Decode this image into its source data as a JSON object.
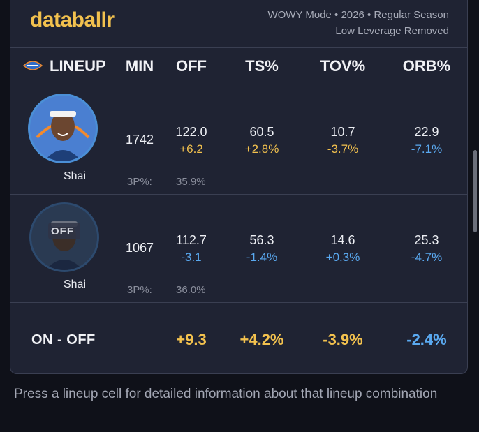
{
  "header": {
    "logo": "databallr",
    "meta_line1": "WOWY Mode • 2026 • Regular Season",
    "meta_line2": "Low Leverage Removed"
  },
  "columns": {
    "lineup": "LINEUP",
    "min": "MIN",
    "off": "OFF",
    "ts": "TS%",
    "tov": "TOV%",
    "orb": "ORB%"
  },
  "rows": [
    {
      "player": "Shai",
      "status": "on",
      "min": "1742",
      "off": "122.0",
      "off_delta": "+6.2",
      "ts": "60.5",
      "ts_delta": "+2.8%",
      "tov": "10.7",
      "tov_delta": "-3.7%",
      "orb": "22.9",
      "orb_delta": "-7.1%",
      "threep_label": "3P%:",
      "threep": "35.9%"
    },
    {
      "player": "Shai",
      "status": "off",
      "off_tag": "OFF",
      "min": "1067",
      "off": "112.7",
      "off_delta": "-3.1",
      "ts": "56.3",
      "ts_delta": "-1.4%",
      "tov": "14.6",
      "tov_delta": "+0.3%",
      "orb": "25.3",
      "orb_delta": "-4.7%",
      "threep_label": "3P%:",
      "threep": "36.0%"
    }
  ],
  "on_off": {
    "label": "ON - OFF",
    "off": "+9.3",
    "ts": "+4.2%",
    "tov": "-3.9%",
    "orb": "-2.4%"
  },
  "footer_hint": "Press a lineup cell for detailed information about that lineup combination",
  "colors": {
    "accent": "#f2c14e",
    "negative": "#5aa9f0",
    "card": "#1f2333",
    "background": "#0f1119"
  }
}
